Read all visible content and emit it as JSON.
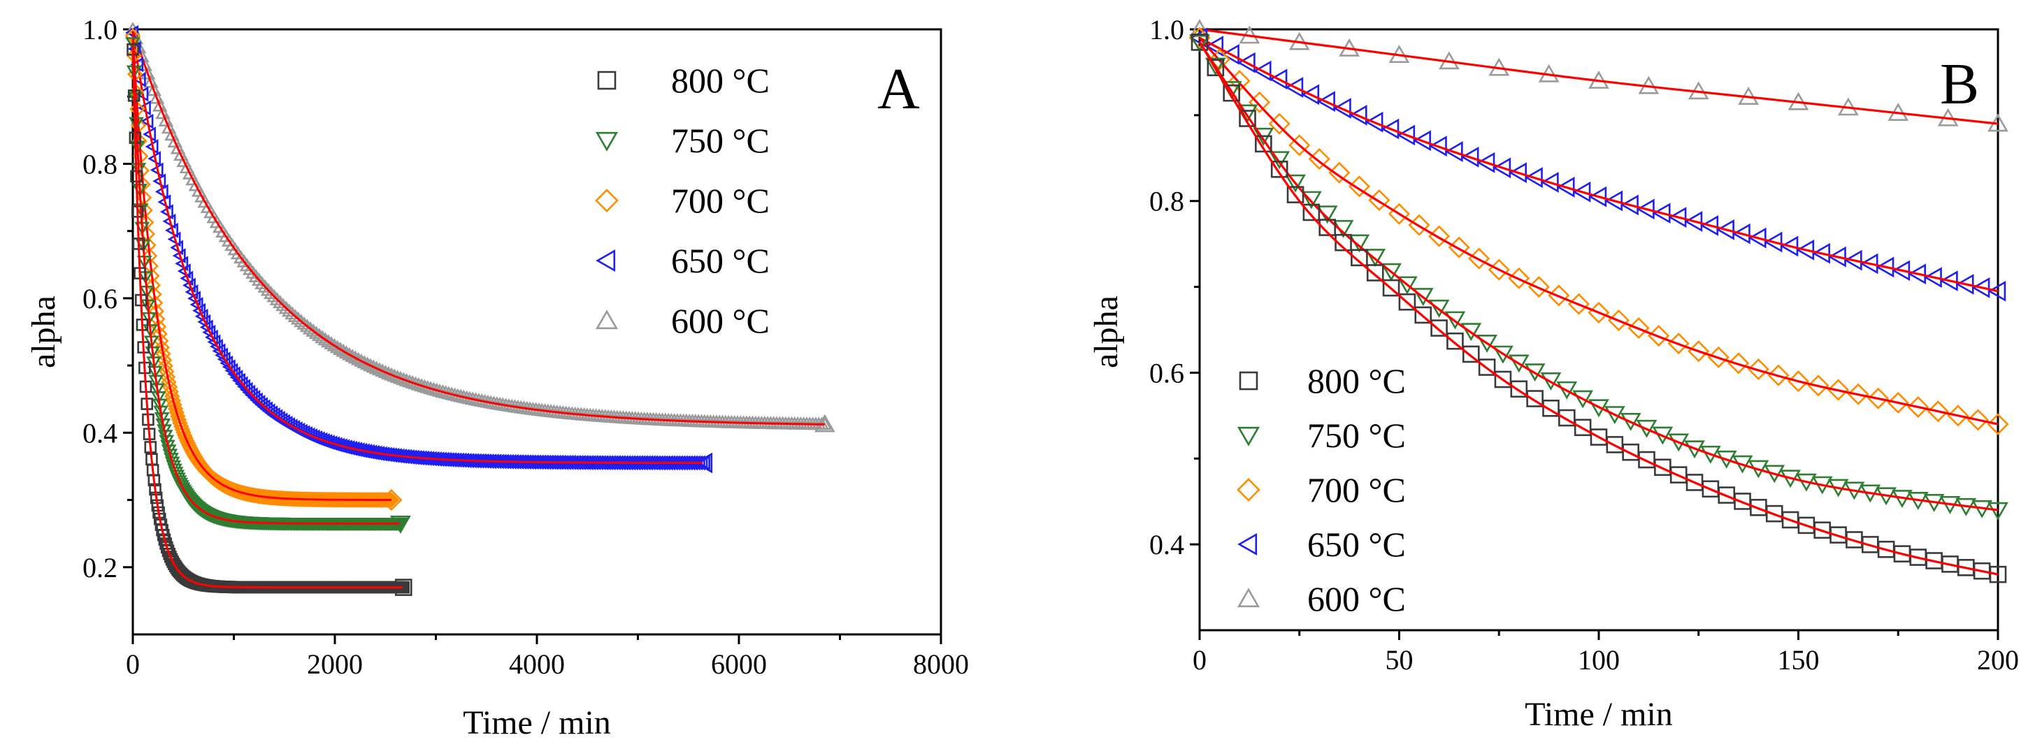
{
  "figure": {
    "colors": {
      "800": "#3a3a3a",
      "750": "#2e7d32",
      "700": "#ff8c00",
      "650": "#1f1ff0",
      "600": "#9a9a9a",
      "fit": "#ff0000"
    }
  },
  "chart_data": [
    {
      "panel": "A",
      "type": "scatter",
      "xlabel": "Time / min",
      "ylabel": "alpha",
      "xlim": [
        0,
        8000
      ],
      "ylim": [
        0.1,
        1.0
      ],
      "xticks": [
        0,
        2000,
        4000,
        6000,
        8000
      ],
      "yticks": [
        0.2,
        0.4,
        0.6,
        0.8,
        1.0
      ],
      "xtick_labels": [
        "0",
        "2000",
        "4000",
        "6000",
        "8000"
      ],
      "ytick_labels": [
        "0.2",
        "0.4",
        "0.6",
        "0.8",
        "1.0"
      ],
      "legend_position": "top-right",
      "series": [
        {
          "name": "800 °C",
          "marker": "square",
          "color_key": "800",
          "t_end": 2680,
          "model": {
            "start": 0.97,
            "final": 0.17,
            "tau": 130
          }
        },
        {
          "name": "750 °C",
          "marker": "triangle-down",
          "color_key": "750",
          "t_end": 2650,
          "model": {
            "start": 0.98,
            "final": 0.265,
            "tau": 190
          }
        },
        {
          "name": "700 °C",
          "marker": "diamond",
          "color_key": "700",
          "t_end": 2560,
          "model": {
            "start": 0.99,
            "final": 0.3,
            "tau": 260
          }
        },
        {
          "name": "650 °C",
          "marker": "triangle-left",
          "color_key": "650",
          "t_end": 5660,
          "model": {
            "start": 0.995,
            "final": 0.355,
            "tau": 640
          }
        },
        {
          "name": "600 °C",
          "marker": "triangle-up",
          "color_key": "600",
          "t_end": 6850,
          "model": {
            "start": 1.0,
            "final": 0.41,
            "tau": 1250
          }
        }
      ]
    },
    {
      "panel": "B",
      "type": "scatter",
      "xlabel": "Time / min",
      "ylabel": "alpha",
      "xlim": [
        0,
        200
      ],
      "ylim": [
        0.3,
        1.0
      ],
      "xticks": [
        0,
        50,
        100,
        150,
        200
      ],
      "yticks": [
        0.4,
        0.6,
        0.8,
        1.0
      ],
      "xtick_labels": [
        "0",
        "50",
        "100",
        "150",
        "200"
      ],
      "ytick_labels": [
        "0.4",
        "0.6",
        "0.8",
        "1.0"
      ],
      "legend_position": "bottom-left",
      "series": [
        {
          "name": "800 °C",
          "marker": "square",
          "color_key": "800",
          "step": 4,
          "x": [
            0,
            25,
            50,
            75,
            100,
            125,
            150,
            175,
            200
          ],
          "y": [
            0.985,
            0.8,
            0.69,
            0.595,
            0.525,
            0.47,
            0.425,
            0.39,
            0.365
          ]
        },
        {
          "name": "750 °C",
          "marker": "triangle-down",
          "color_key": "750",
          "step": 4,
          "x": [
            0,
            25,
            50,
            75,
            100,
            125,
            150,
            175,
            200
          ],
          "y": [
            0.985,
            0.815,
            0.71,
            0.625,
            0.56,
            0.51,
            0.475,
            0.455,
            0.44
          ]
        },
        {
          "name": "700 °C",
          "marker": "diamond",
          "color_key": "700",
          "step": 5,
          "x": [
            0,
            25,
            50,
            75,
            100,
            125,
            150,
            175,
            200
          ],
          "y": [
            0.99,
            0.865,
            0.785,
            0.72,
            0.67,
            0.625,
            0.59,
            0.565,
            0.54
          ]
        },
        {
          "name": "650 °C",
          "marker": "triangle-left",
          "color_key": "650",
          "step": 4,
          "x": [
            0,
            25,
            50,
            75,
            100,
            125,
            150,
            175,
            200
          ],
          "y": [
            0.99,
            0.93,
            0.88,
            0.84,
            0.805,
            0.775,
            0.745,
            0.72,
            0.695
          ]
        },
        {
          "name": "600 °C",
          "marker": "triangle-up",
          "color_key": "600",
          "step": 12.5,
          "x": [
            0,
            50,
            100,
            150,
            200
          ],
          "y": [
            1.0,
            0.97,
            0.94,
            0.915,
            0.89
          ]
        }
      ]
    }
  ]
}
